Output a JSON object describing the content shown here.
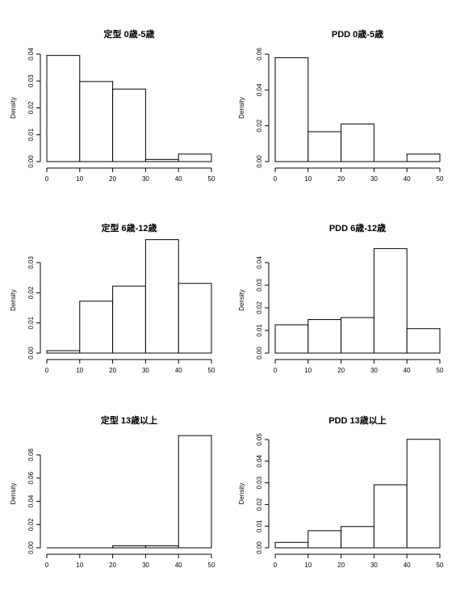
{
  "chart_data": [
    {
      "type": "bar",
      "title": "定型 0歳-5歳",
      "ylabel": "Density",
      "xlabel": "",
      "bins": [
        [
          0,
          10
        ],
        [
          10,
          20
        ],
        [
          20,
          30
        ],
        [
          30,
          40
        ],
        [
          40,
          50
        ]
      ],
      "values": [
        0.0395,
        0.0298,
        0.027,
        0.0008,
        0.0028
      ],
      "xlim": [
        0,
        50
      ],
      "ylim": [
        0,
        0.04
      ],
      "xticks": [
        "0",
        "10",
        "20",
        "30",
        "40",
        "50"
      ],
      "yticks": [
        "0.00",
        "0.01",
        "0.02",
        "0.03",
        "0.04"
      ],
      "ytick_values": [
        0,
        0.01,
        0.02,
        0.03,
        0.04
      ]
    },
    {
      "type": "bar",
      "title": "PDD 0歳-5歳",
      "ylabel": "Density",
      "xlabel": "",
      "bins": [
        [
          0,
          10
        ],
        [
          10,
          20
        ],
        [
          20,
          30
        ],
        [
          30,
          40
        ],
        [
          40,
          50
        ]
      ],
      "values": [
        0.058,
        0.0167,
        0.021,
        0.0,
        0.0042
      ],
      "xlim": [
        0,
        50
      ],
      "ylim": [
        0,
        0.06
      ],
      "xticks": [
        "0",
        "10",
        "20",
        "30",
        "40",
        "50"
      ],
      "yticks": [
        "0.00",
        "0.02",
        "0.04",
        "0.06"
      ],
      "ytick_values": [
        0,
        0.02,
        0.04,
        0.06
      ]
    },
    {
      "type": "bar",
      "title": "定型 6歳-12歳",
      "ylabel": "Density",
      "xlabel": "",
      "bins": [
        [
          0,
          10
        ],
        [
          10,
          20
        ],
        [
          20,
          30
        ],
        [
          30,
          40
        ],
        [
          40,
          50
        ]
      ],
      "values": [
        0.0008,
        0.0172,
        0.0222,
        0.0376,
        0.0231
      ],
      "xlim": [
        0,
        50
      ],
      "ylim": [
        0,
        0.03
      ],
      "xticks": [
        "0",
        "10",
        "20",
        "30",
        "40",
        "50"
      ],
      "yticks": [
        "0.00",
        "0.01",
        "0.02",
        "0.03"
      ],
      "ytick_values": [
        0,
        0.01,
        0.02,
        0.03
      ]
    },
    {
      "type": "bar",
      "title": "PDD 6歳-12歳",
      "ylabel": "Density",
      "xlabel": "",
      "bins": [
        [
          0,
          10
        ],
        [
          10,
          20
        ],
        [
          20,
          30
        ],
        [
          30,
          40
        ],
        [
          40,
          50
        ]
      ],
      "values": [
        0.0125,
        0.0148,
        0.0157,
        0.0462,
        0.0108
      ],
      "xlim": [
        0,
        50
      ],
      "ylim": [
        0,
        0.04
      ],
      "xticks": [
        "0",
        "10",
        "20",
        "30",
        "40",
        "50"
      ],
      "yticks": [
        "0.00",
        "0.01",
        "0.02",
        "0.03",
        "0.04"
      ],
      "ytick_values": [
        0,
        0.01,
        0.02,
        0.03,
        0.04
      ]
    },
    {
      "type": "bar",
      "title": "定型 13歳以上",
      "ylabel": "Density",
      "xlabel": "",
      "bins": [
        [
          0,
          10
        ],
        [
          10,
          20
        ],
        [
          20,
          30
        ],
        [
          30,
          40
        ],
        [
          40,
          50
        ]
      ],
      "values": [
        0.0,
        0.0,
        0.0017,
        0.0017,
        0.0966
      ],
      "xlim": [
        0,
        50
      ],
      "ylim": [
        0,
        0.08
      ],
      "xticks": [
        "0",
        "10",
        "20",
        "30",
        "40",
        "50"
      ],
      "yticks": [
        "0.00",
        "0.02",
        "0.04",
        "0.06",
        "0.08"
      ],
      "ytick_values": [
        0,
        0.02,
        0.04,
        0.06,
        0.08
      ]
    },
    {
      "type": "bar",
      "title": "PDD 13歳以上",
      "ylabel": "Density",
      "xlabel": "",
      "bins": [
        [
          0,
          10
        ],
        [
          10,
          20
        ],
        [
          20,
          30
        ],
        [
          30,
          40
        ],
        [
          40,
          50
        ]
      ],
      "values": [
        0.0025,
        0.0079,
        0.0098,
        0.0291,
        0.0501
      ],
      "xlim": [
        0,
        50
      ],
      "ylim": [
        0,
        0.05
      ],
      "xticks": [
        "0",
        "10",
        "20",
        "30",
        "40",
        "50"
      ],
      "yticks": [
        "0.00",
        "0.01",
        "0.02",
        "0.03",
        "0.04",
        "0.05"
      ],
      "ytick_values": [
        0,
        0.01,
        0.02,
        0.03,
        0.04,
        0.05
      ]
    }
  ]
}
